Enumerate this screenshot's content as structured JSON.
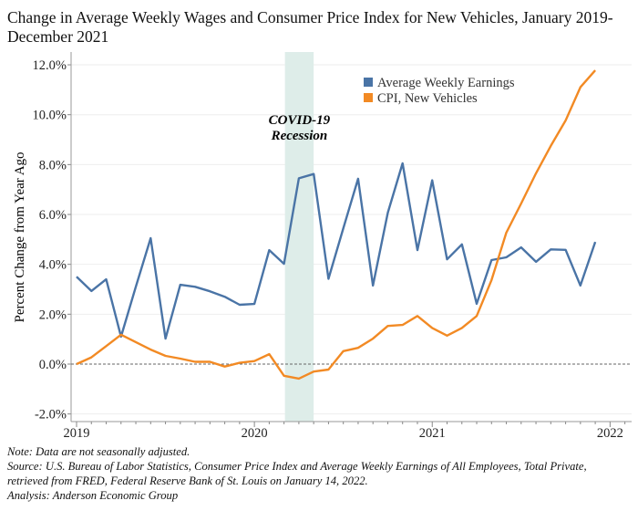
{
  "chart_data": {
    "type": "line",
    "title": "Change in Average Weekly Wages and Consumer Price Index for New Vehicles, January 2019-December 2021",
    "ylabel": "Percent Change from Year Ago",
    "xlabel": "",
    "ylim": [
      -2.3,
      12.5
    ],
    "yticks": [
      -2,
      0,
      2,
      4,
      6,
      8,
      10,
      12
    ],
    "ytick_labels": [
      "-2.0%",
      "0.0%",
      "2.0%",
      "4.0%",
      "6.0%",
      "8.0%",
      "10.0%",
      "12.0%"
    ],
    "xtick_labels": [
      "2019",
      "2020",
      "2021",
      "2022"
    ],
    "grid": true,
    "legend_position": "top-right",
    "x": [
      "2019-01",
      "2019-02",
      "2019-03",
      "2019-04",
      "2019-05",
      "2019-06",
      "2019-07",
      "2019-08",
      "2019-09",
      "2019-10",
      "2019-11",
      "2019-12",
      "2020-01",
      "2020-02",
      "2020-03",
      "2020-04",
      "2020-05",
      "2020-06",
      "2020-07",
      "2020-08",
      "2020-09",
      "2020-10",
      "2020-11",
      "2020-12",
      "2021-01",
      "2021-02",
      "2021-03",
      "2021-04",
      "2021-05",
      "2021-06",
      "2021-07",
      "2021-08",
      "2021-09",
      "2021-10",
      "2021-11",
      "2021-12"
    ],
    "series": [
      {
        "name": "Average Weekly Earnings",
        "color": "#4a74a6",
        "values": [
          3.5,
          2.93,
          3.4,
          1.1,
          3.1,
          5.05,
          1.02,
          3.18,
          3.1,
          2.92,
          2.7,
          2.38,
          2.41,
          4.57,
          4.02,
          7.45,
          7.62,
          3.42,
          5.45,
          7.43,
          3.15,
          6.07,
          8.05,
          4.57,
          7.37,
          4.2,
          4.8,
          2.42,
          4.17,
          4.28,
          4.68,
          4.1,
          4.6,
          4.58,
          3.15,
          4.9
        ]
      },
      {
        "name": "CPI, New Vehicles",
        "color": "#f28a24",
        "values": [
          0.0,
          0.27,
          0.72,
          1.18,
          0.88,
          0.58,
          0.33,
          0.22,
          0.09,
          0.09,
          -0.1,
          0.05,
          0.12,
          0.4,
          -0.47,
          -0.58,
          -0.3,
          -0.22,
          0.52,
          0.65,
          1.02,
          1.53,
          1.57,
          1.93,
          1.45,
          1.14,
          1.45,
          1.93,
          3.37,
          5.27,
          6.44,
          7.65,
          8.75,
          9.77,
          11.1,
          11.78
        ]
      }
    ],
    "annotation": {
      "text_line1": "COVID-19",
      "text_line2": "Recession",
      "start": "2020-03",
      "end": "2020-05",
      "shade_color": "#deede9"
    },
    "reference_line": 0
  },
  "notes": {
    "note": "Note: Data are not seasonally adjusted.",
    "source1": "Source: U.S. Bureau of Labor Statistics, Consumer Price Index and Average Weekly Earnings of All Employees, Total Private,",
    "source2": "retrieved from FRED, Federal Reserve Bank of St. Louis on January 14, 2022.",
    "analysis": "Analysis: Anderson Economic Group"
  }
}
